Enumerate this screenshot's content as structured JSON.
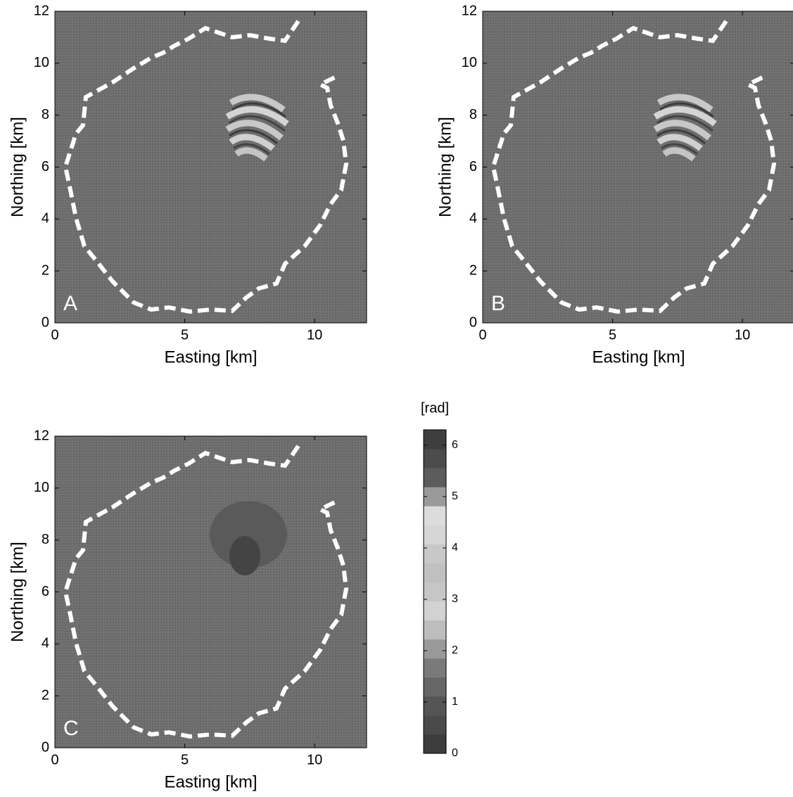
{
  "chart_data": [
    {
      "type": "image",
      "annotation": "A",
      "xlabel": "Easting [km]",
      "ylabel": "Northing [km]",
      "xlim": [
        0,
        12
      ],
      "ylim": [
        0,
        12
      ],
      "xticks": [
        0,
        5,
        10
      ],
      "yticks": [
        0,
        2,
        4,
        6,
        8,
        10,
        12
      ]
    },
    {
      "type": "image",
      "annotation": "B",
      "xlabel": "Easting [km]",
      "ylabel": "Northing [km]",
      "xlim": [
        0,
        12
      ],
      "ylim": [
        0,
        12
      ],
      "xticks": [
        0,
        5,
        10
      ],
      "yticks": [
        0,
        2,
        4,
        6,
        8,
        10,
        12
      ]
    },
    {
      "type": "image",
      "annotation": "C",
      "xlabel": "Easting [km]",
      "ylabel": "Northing [km]",
      "xlim": [
        0,
        12
      ],
      "ylim": [
        0,
        12
      ],
      "xticks": [
        0,
        5,
        10
      ],
      "yticks": [
        0,
        2,
        4,
        6,
        8,
        10,
        12
      ]
    }
  ],
  "colorbar": {
    "title": "[rad]",
    "lim": [
      0,
      6.3
    ],
    "ticks": [
      0,
      1,
      2,
      3,
      4,
      5,
      6
    ],
    "colors": [
      "#3c3c3c",
      "#4a4a4a",
      "#555555",
      "#666666",
      "#7a7a7a",
      "#999999",
      "#bdbdbd",
      "#d2d2d2",
      "#c6c6c6",
      "#c0c0c0",
      "#c8c8c8",
      "#d6d6d6",
      "#dcdcdc",
      "#9a9a9a",
      "#5c5c5c",
      "#4c4c4c",
      "#3e3e3e"
    ]
  }
}
